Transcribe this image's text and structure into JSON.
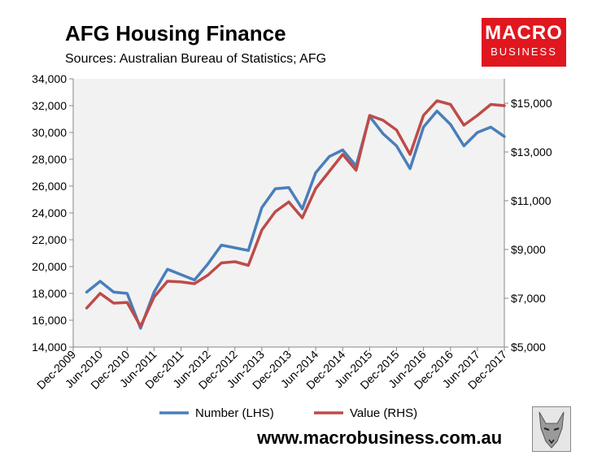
{
  "header": {
    "title": "AFG Housing Finance",
    "subtitle": "Sources: Australian Bureau of Statistics; AFG"
  },
  "branding": {
    "logo_top": "MACRO",
    "logo_bottom": "BUSINESS",
    "url": "www.macrobusiness.com.au",
    "brand_color": "#e0171f"
  },
  "chart_data": {
    "type": "line",
    "title": "AFG Housing Finance",
    "subtitle": "Sources: Australian Bureau of Statistics; AFG",
    "x_tick_labels": [
      "Dec-2009",
      "Jun-2010",
      "Dec-2010",
      "Jun-2011",
      "Dec-2011",
      "Jun-2012",
      "Dec-2012",
      "Jun-2013",
      "Dec-2013",
      "Jun-2014",
      "Dec-2014",
      "Jun-2015",
      "Dec-2015",
      "Jun-2016",
      "Dec-2016",
      "Jun-2017",
      "Dec-2017"
    ],
    "x_range_months": [
      0,
      96
    ],
    "y_left": {
      "ylim": [
        14000,
        34000
      ],
      "ticks": [
        14000,
        16000,
        18000,
        20000,
        22000,
        24000,
        26000,
        28000,
        30000,
        32000,
        34000
      ],
      "tick_labels": [
        "14,000",
        "16,000",
        "18,000",
        "20,000",
        "22,000",
        "24,000",
        "26,000",
        "28,000",
        "30,000",
        "32,000",
        "34,000"
      ]
    },
    "y_right": {
      "ylim": [
        5000,
        16000
      ],
      "ticks": [
        5000,
        7000,
        9000,
        11000,
        13000,
        15000
      ],
      "tick_labels": [
        "$5,000",
        "$7,000",
        "$9,000",
        "$11,000",
        "$13,000",
        "$15,000"
      ]
    },
    "grid": false,
    "legend_position": "bottom",
    "series": [
      {
        "name": "Number (LHS)",
        "axis": "left",
        "color": "#4a7ebb",
        "x": [
          3,
          6,
          9,
          12,
          15,
          18,
          21,
          24,
          27,
          30,
          33,
          36,
          39,
          42,
          45,
          48,
          51,
          54,
          57,
          60,
          63,
          66,
          69,
          72,
          75,
          78,
          81,
          84,
          87,
          90,
          93,
          96
        ],
        "values": [
          18100,
          18900,
          18100,
          18000,
          15400,
          18100,
          19800,
          19400,
          19000,
          20200,
          21600,
          21400,
          21200,
          24400,
          25800,
          25900,
          24300,
          27000,
          28200,
          28700,
          27500,
          31200,
          29900,
          29000,
          27300,
          30400,
          31600,
          30600,
          29000,
          30000,
          30400,
          29700
        ]
      },
      {
        "name": "Value (RHS)",
        "axis": "right",
        "color": "#be4b48",
        "x": [
          3,
          6,
          9,
          12,
          15,
          18,
          21,
          24,
          27,
          30,
          33,
          36,
          39,
          42,
          45,
          48,
          51,
          54,
          57,
          60,
          63,
          66,
          69,
          72,
          75,
          78,
          81,
          84,
          87,
          90,
          93,
          96
        ],
        "values": [
          6600,
          7200,
          6800,
          6830,
          5850,
          7050,
          7700,
          7670,
          7600,
          7950,
          8450,
          8500,
          8350,
          9800,
          10550,
          10950,
          10300,
          11500,
          12200,
          12900,
          12250,
          14500,
          14300,
          13900,
          12900,
          14500,
          15100,
          14950,
          14100,
          14500,
          14950,
          14900
        ]
      }
    ]
  }
}
